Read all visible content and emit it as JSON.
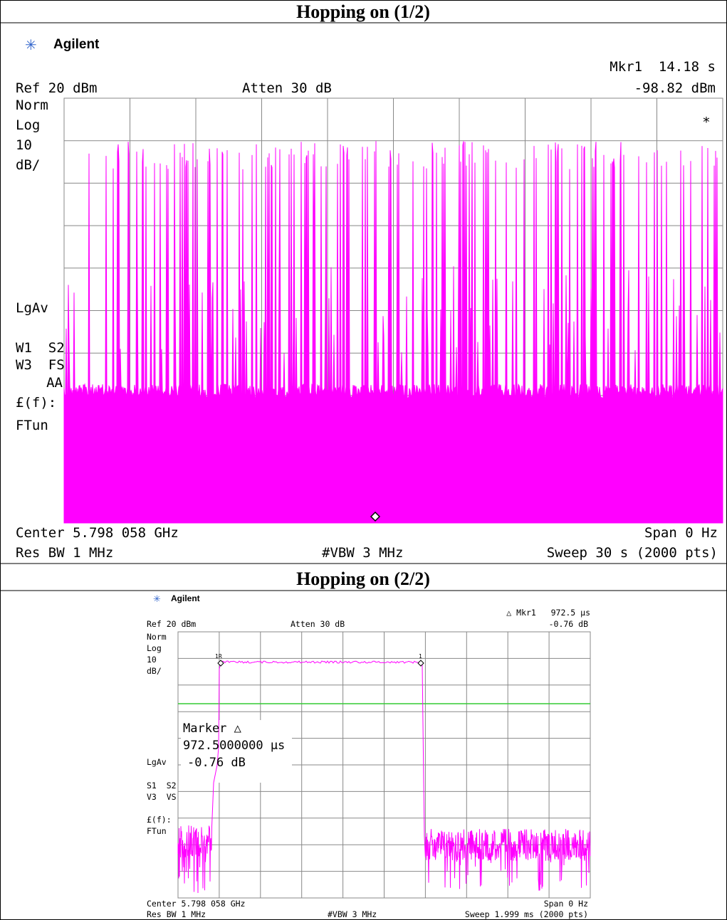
{
  "panels": [
    {
      "title": "Hopping on (1/2)",
      "brand": "Agilent",
      "marker_readout": "Mkr1  14.18 s",
      "ref": "Ref 20 dBm",
      "atten": "Atten 30 dB",
      "marker_level": "-98.82 dBm",
      "marker_symbol": "*",
      "side_labels": [
        "Norm",
        "Log",
        "10",
        "dB/",
        "LgAv",
        "W1  S2",
        "W3  FS",
        "AA",
        "£(f):",
        "FTun"
      ],
      "center": "Center 5.798 058 GHz",
      "span": "Span 0 Hz",
      "rbw": "Res BW 1 MHz",
      "vbw": "#VBW 3 MHz",
      "sweep": "Sweep 30 s (2000 pts)"
    },
    {
      "title": "Hopping on (2/2)",
      "brand": "Agilent",
      "marker_readout": "△ Mkr1   972.5 µs",
      "ref": "Ref 20 dBm",
      "atten": "Atten 30 dB",
      "marker_level": "-0.76 dB",
      "side_labels": [
        "Norm",
        "Log",
        "10",
        "dB/",
        "LgAv",
        "S1  S2",
        "V3  VS",
        "£(f):",
        "FTun"
      ],
      "marker_box": [
        "Marker △",
        "972.5000000 µs",
        "-0.76 dB"
      ],
      "marker_tags": [
        "1R",
        "1"
      ],
      "center": "Center 5.798 058 GHz",
      "span": "Span 0 Hz",
      "rbw": "Res BW 1 MHz",
      "vbw": "#VBW 3 MHz",
      "sweep": "Sweep 1.999 ms (2000 pts)"
    }
  ]
}
